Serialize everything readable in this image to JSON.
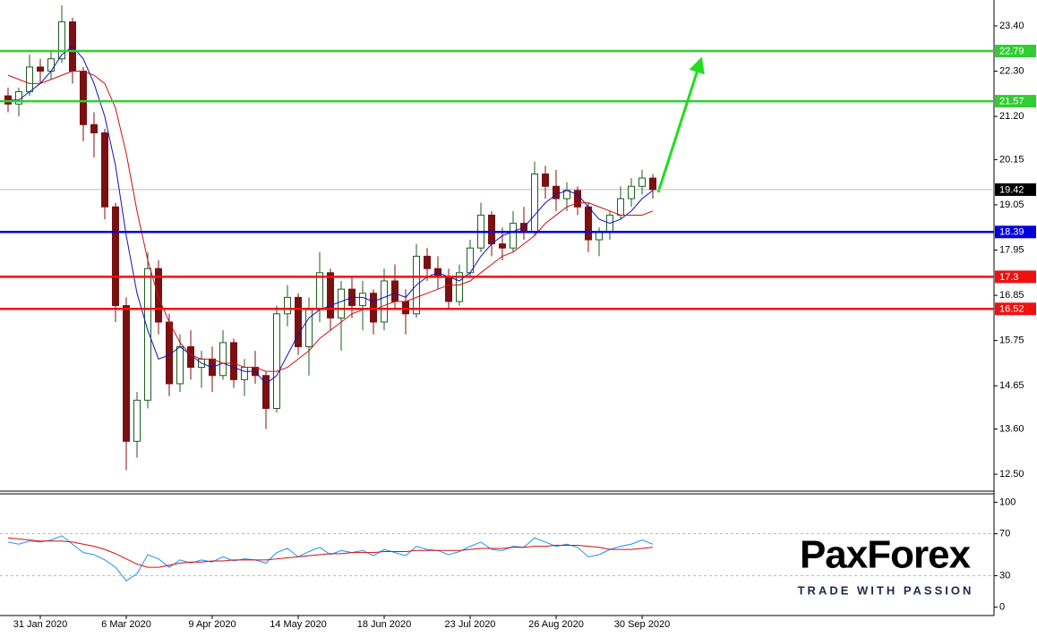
{
  "chart_data": [
    {
      "type": "candlestick",
      "categories": [
        null,
        null,
        null,
        "31 Jan 2020",
        null,
        null,
        null,
        null,
        null,
        null,
        null,
        "6 Mar 2020",
        null,
        null,
        null,
        null,
        null,
        null,
        null,
        "9 Apr 2020",
        null,
        null,
        null,
        null,
        null,
        null,
        null,
        "14 May 2020",
        null,
        null,
        null,
        null,
        null,
        null,
        null,
        "18 Jun 2020",
        null,
        null,
        null,
        null,
        null,
        null,
        null,
        "23 Jul 2020",
        null,
        null,
        null,
        null,
        null,
        null,
        null,
        "26 Aug 2020",
        null,
        null,
        null,
        null,
        null,
        null,
        null,
        "30 Sep 2020",
        null
      ],
      "open": [
        21.7,
        21.5,
        21.8,
        22.4,
        22.3,
        22.6,
        23.5,
        22.3,
        21.0,
        20.8,
        19.0,
        16.6,
        13.3,
        14.3,
        17.5,
        16.2,
        14.7,
        15.6,
        15.1,
        15.3,
        14.9,
        15.7,
        14.8,
        15.1,
        14.9,
        14.1,
        16.4,
        16.8,
        15.6,
        16.5,
        17.4,
        16.3,
        17.0,
        16.6,
        16.9,
        16.2,
        17.2,
        16.7,
        16.4,
        17.8,
        17.5,
        17.3,
        16.7,
        17.4,
        18.0,
        18.8,
        18.1,
        18.0,
        18.6,
        18.4,
        19.8,
        19.5,
        19.2,
        19.4,
        19.0,
        18.2,
        18.4,
        18.8,
        19.2,
        19.5,
        19.7
      ],
      "high": [
        21.9,
        21.9,
        22.7,
        22.6,
        22.8,
        23.9,
        23.6,
        22.4,
        21.3,
        20.9,
        19.1,
        16.8,
        14.5,
        17.9,
        17.7,
        16.4,
        15.9,
        16.0,
        15.5,
        15.6,
        16.0,
        15.8,
        15.3,
        15.5,
        15.0,
        16.6,
        17.1,
        16.9,
        16.8,
        17.9,
        17.5,
        17.2,
        17.3,
        17.2,
        17.0,
        17.5,
        17.6,
        17.0,
        18.1,
        18.0,
        17.8,
        17.5,
        17.6,
        18.2,
        19.1,
        18.9,
        18.5,
        18.9,
        19.0,
        20.1,
        20.0,
        19.9,
        19.6,
        19.5,
        19.1,
        18.5,
        18.9,
        19.5,
        19.7,
        19.9,
        19.8
      ],
      "low": [
        21.3,
        21.2,
        21.7,
        22.0,
        22.1,
        22.5,
        22.0,
        20.6,
        20.2,
        18.7,
        16.2,
        12.6,
        12.9,
        14.1,
        15.9,
        14.4,
        14.5,
        14.8,
        14.6,
        14.5,
        14.8,
        14.6,
        14.4,
        14.7,
        13.6,
        14.0,
        16.1,
        15.4,
        14.9,
        16.2,
        16.0,
        15.5,
        16.3,
        16.0,
        15.9,
        16.0,
        16.5,
        15.9,
        16.3,
        17.2,
        17.0,
        16.5,
        16.6,
        17.3,
        17.9,
        17.8,
        17.7,
        17.9,
        18.2,
        18.3,
        19.2,
        18.9,
        18.9,
        18.8,
        17.9,
        17.8,
        18.2,
        18.7,
        19.0,
        19.3,
        19.2
      ],
      "close": [
        21.5,
        21.8,
        22.4,
        22.3,
        22.6,
        23.5,
        22.3,
        21.0,
        20.8,
        19.0,
        16.6,
        13.3,
        14.3,
        17.5,
        16.2,
        14.7,
        15.6,
        15.1,
        15.3,
        14.9,
        15.7,
        14.8,
        15.1,
        14.9,
        14.1,
        16.4,
        16.8,
        15.6,
        16.5,
        17.4,
        16.3,
        17.0,
        16.6,
        16.9,
        16.2,
        17.2,
        16.7,
        16.4,
        17.8,
        17.5,
        17.3,
        16.7,
        17.4,
        18.0,
        18.8,
        18.1,
        18.0,
        18.6,
        18.4,
        19.8,
        19.5,
        19.2,
        19.4,
        19.0,
        18.2,
        18.4,
        18.8,
        19.2,
        19.5,
        19.7,
        19.42
      ],
      "up_color": "#1b5e20",
      "down_color": "#7a1010",
      "series": [
        {
          "color": "#1010c0",
          "values": [
            21.6,
            21.6,
            21.8,
            22.0,
            22.3,
            22.7,
            22.9,
            22.6,
            22.0,
            21.2,
            20.0,
            18.3,
            16.9,
            16.0,
            15.3,
            15.4,
            15.6,
            15.4,
            15.2,
            15.1,
            15.2,
            15.1,
            15.0,
            15.0,
            14.7,
            14.9,
            15.4,
            15.9,
            16.3,
            16.5,
            16.6,
            16.7,
            16.8,
            16.8,
            16.7,
            16.8,
            16.9,
            16.8,
            17.1,
            17.3,
            17.4,
            17.3,
            17.2,
            17.4,
            17.8,
            18.1,
            18.3,
            18.4,
            18.5,
            18.8,
            19.1,
            19.3,
            19.4,
            19.3,
            19.0,
            18.7,
            18.6,
            18.7,
            18.9,
            19.2,
            19.4
          ]
        },
        {
          "color": "#d01010",
          "values": [
            22.2,
            22.1,
            22.0,
            22.0,
            22.1,
            22.2,
            22.3,
            22.3,
            22.2,
            22.0,
            21.4,
            20.3,
            18.9,
            17.7,
            16.8,
            16.2,
            15.7,
            15.4,
            15.3,
            15.3,
            15.2,
            15.2,
            15.1,
            15.1,
            15.0,
            15.0,
            15.1,
            15.3,
            15.5,
            15.8,
            16.0,
            16.2,
            16.4,
            16.5,
            16.5,
            16.6,
            16.7,
            16.7,
            16.8,
            16.9,
            17.0,
            17.1,
            17.1,
            17.2,
            17.4,
            17.6,
            17.8,
            17.9,
            18.1,
            18.3,
            18.6,
            18.8,
            19.0,
            19.1,
            19.1,
            19.0,
            18.9,
            18.8,
            18.8,
            18.8,
            18.9
          ]
        }
      ],
      "levels": [
        {
          "value": 22.79,
          "color": "#33cc33"
        },
        {
          "value": 21.57,
          "color": "#33cc33"
        },
        {
          "value": 18.39,
          "color": "#0000dd"
        },
        {
          "value": 17.3,
          "color": "#ee1111"
        },
        {
          "value": 16.52,
          "color": "#ee1111"
        }
      ],
      "ylim": [
        12.11,
        24.03
      ],
      "yticks": [
        {
          "value": 23.4,
          "label": "23.40"
        },
        {
          "value": 22.3,
          "label": "22.30"
        },
        {
          "value": 21.2,
          "label": "21.20"
        },
        20.15,
        19.05,
        17.95,
        16.85,
        15.75,
        14.65,
        {
          "value": 13.6,
          "label": "13.60"
        },
        {
          "value": 12.5,
          "label": "12.50"
        }
      ]
    },
    {
      "type": "line",
      "series": [
        {
          "color": "#1e90ff",
          "values": [
            62,
            60,
            63,
            62,
            64,
            68,
            60,
            52,
            50,
            45,
            38,
            25,
            32,
            50,
            46,
            38,
            45,
            42,
            45,
            43,
            48,
            44,
            46,
            45,
            42,
            52,
            56,
            48,
            53,
            57,
            50,
            54,
            52,
            54,
            49,
            55,
            52,
            49,
            58,
            55,
            54,
            50,
            53,
            58,
            62,
            55,
            54,
            58,
            57,
            66,
            62,
            58,
            60,
            57,
            48,
            50,
            55,
            58,
            60,
            64,
            60
          ]
        },
        {
          "color": "#d01010",
          "values": [
            66,
            65,
            64,
            63,
            63,
            63,
            62,
            60,
            58,
            55,
            51,
            46,
            41,
            38,
            38,
            40,
            42,
            43,
            43,
            44,
            44,
            45,
            45,
            45,
            45,
            46,
            47,
            48,
            49,
            50,
            51,
            51,
            52,
            52,
            52,
            53,
            53,
            53,
            54,
            54,
            54,
            54,
            54,
            55,
            56,
            56,
            56,
            57,
            57,
            58,
            58,
            59,
            59,
            59,
            58,
            57,
            55,
            55,
            55,
            56,
            57
          ]
        }
      ],
      "ylim": [
        -8,
        108
      ],
      "yticks": [
        100,
        70,
        30,
        0
      ]
    }
  ],
  "logo": {
    "name": "PaxForex",
    "tagline": "TRADE WITH PASSION"
  }
}
